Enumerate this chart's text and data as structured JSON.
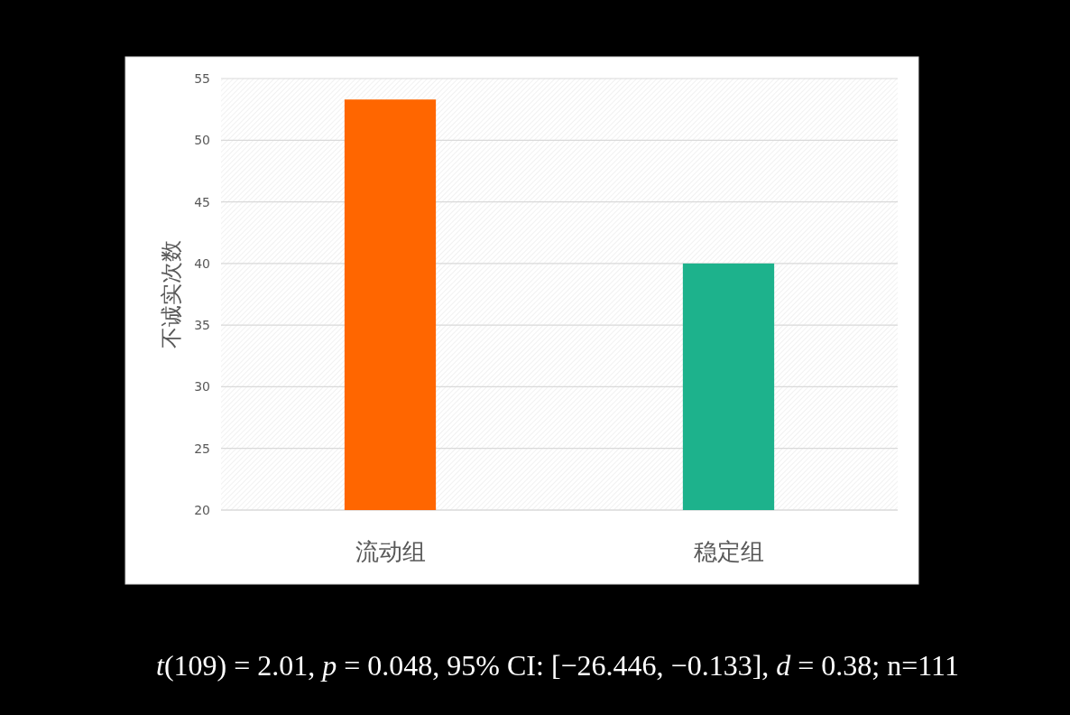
{
  "chart_data": {
    "type": "bar",
    "ylabel": "不诚实次数",
    "categories": [
      "流动组",
      "稳定组"
    ],
    "values": [
      53.3,
      40
    ],
    "colors": [
      "#ff6600",
      "#1db28c"
    ],
    "ylim": [
      20,
      55
    ],
    "yticks": [
      20,
      25,
      30,
      35,
      40,
      45,
      50,
      55
    ],
    "grid": "y",
    "annotations": [
      "*t*(109) = 2.01, *p* = 0.048, 95% CI: [−26.446, −0.133], *d* = 0.38; n=111"
    ]
  }
}
